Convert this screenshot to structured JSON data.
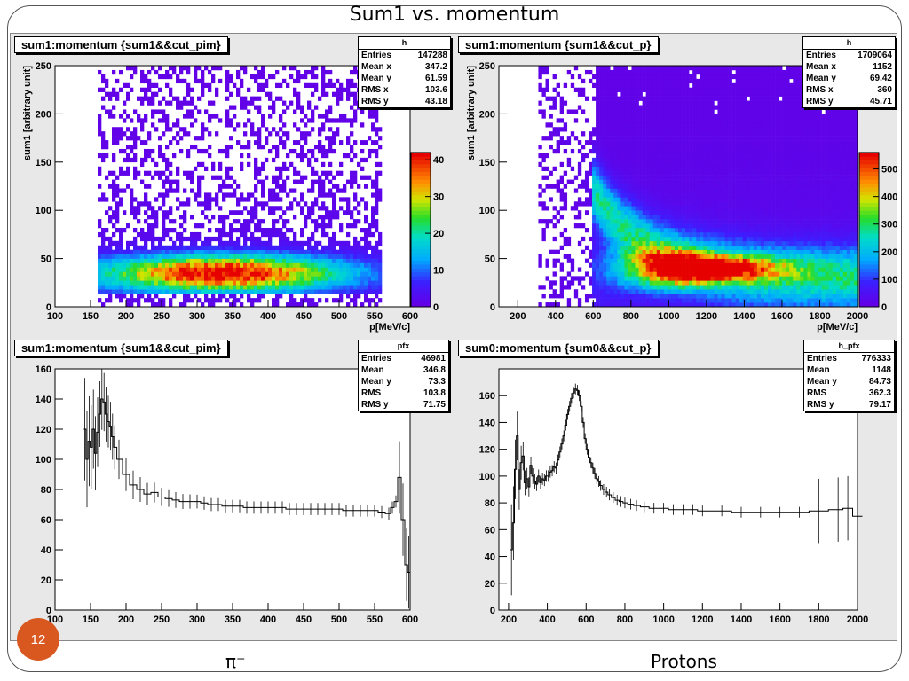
{
  "slide": {
    "title": "Sum1 vs. momentum",
    "number": "12"
  },
  "captions": {
    "left": "π⁻",
    "right": "Protons"
  },
  "colors": {
    "frame": "#555555",
    "pad_bg": "#e8e8e8",
    "plot_bg": "#ffffff",
    "slide_number_bg": "#d9581f",
    "histogram_line": "#000000"
  },
  "panels": [
    {
      "title": "sum1:momentum {sum1&&cut_pim}",
      "stats": {
        "header": "h",
        "rows": [
          [
            "Entries",
            "147288"
          ],
          [
            "Mean x",
            "347.2"
          ],
          [
            "Mean y",
            "61.59"
          ],
          [
            "RMS x",
            "103.6"
          ],
          [
            "RMS y",
            "43.18"
          ]
        ]
      }
    },
    {
      "title": "sum1:momentum {sum1&&cut_p}",
      "stats": {
        "header": "h",
        "rows": [
          [
            "Entries",
            "1709064"
          ],
          [
            "Mean x",
            "1152"
          ],
          [
            "Mean y",
            "69.42"
          ],
          [
            "RMS x",
            "360"
          ],
          [
            "RMS y",
            "45.71"
          ]
        ]
      }
    },
    {
      "title": "sum1:momentum {sum1&&cut_pim}",
      "stats": {
        "header": "pfx",
        "rows": [
          [
            "Entries",
            "46981"
          ],
          [
            "Mean",
            "346.8"
          ],
          [
            "Mean y",
            "73.3"
          ],
          [
            "RMS",
            "103.8"
          ],
          [
            "RMS y",
            "71.75"
          ]
        ]
      }
    },
    {
      "title": "sum0:momentum {sum0&&cut_p}",
      "stats": {
        "header": "h_pfx",
        "rows": [
          [
            "Entries",
            "776333"
          ],
          [
            "Mean",
            "1148"
          ],
          [
            "Mean y",
            "84.73"
          ],
          [
            "RMS",
            "362.3"
          ],
          [
            "RMS y",
            "79.17"
          ]
        ]
      }
    }
  ],
  "chart_data": [
    {
      "type": "heatmap",
      "title": "sum1:momentum {sum1&&cut_pim}",
      "xlabel": "p[MeV/c]",
      "ylabel": "sum1 [arbitrary unit]",
      "xlim": [
        100,
        600
      ],
      "ylim": [
        0,
        250
      ],
      "xticks": [
        100,
        150,
        200,
        250,
        300,
        350,
        400,
        450,
        500,
        550,
        600
      ],
      "yticks": [
        0,
        50,
        100,
        150,
        200,
        250
      ],
      "zlim": [
        0,
        42
      ],
      "zticks": [
        0,
        10,
        20,
        30,
        40
      ],
      "palette": "rainbow",
      "density": {
        "x_range": [
          160,
          560
        ],
        "core_x": [
          250,
          420
        ],
        "core_y": 35,
        "peak_count": 40
      }
    },
    {
      "type": "heatmap",
      "title": "sum1:momentum {sum1&&cut_p}",
      "xlabel": "p[MeV/c]",
      "ylabel": "sum1 [arbitrary unit]",
      "xlim": [
        100,
        2000
      ],
      "ylim": [
        0,
        250
      ],
      "xticks": [
        200,
        400,
        600,
        800,
        1000,
        1200,
        1400,
        1600,
        1800,
        2000
      ],
      "yticks": [
        0,
        50,
        100,
        150,
        200,
        250
      ],
      "zlim": [
        0,
        560
      ],
      "zticks": [
        0,
        100,
        200,
        300,
        400,
        500
      ],
      "palette": "rainbow",
      "density": {
        "x_range": [
          300,
          2000
        ],
        "core_x": [
          900,
          1300
        ],
        "core_y": 40,
        "peak_count": 520
      }
    },
    {
      "type": "line",
      "title": "sum1:momentum {sum1&&cut_pim}",
      "xlim": [
        100,
        600
      ],
      "ylim": [
        0,
        160
      ],
      "xticks": [
        100,
        150,
        200,
        250,
        300,
        350,
        400,
        450,
        500,
        550,
        600
      ],
      "yticks": [
        0,
        20,
        40,
        60,
        80,
        100,
        120,
        140,
        160
      ],
      "series": [
        {
          "x": [
            142,
            145,
            148,
            151,
            154,
            157,
            160,
            163,
            166,
            169,
            172,
            175,
            178,
            181,
            184,
            190,
            200,
            210,
            220,
            230,
            240,
            250,
            260,
            270,
            280,
            290,
            300,
            310,
            320,
            330,
            340,
            350,
            360,
            370,
            380,
            390,
            400,
            410,
            420,
            430,
            440,
            450,
            460,
            470,
            480,
            490,
            500,
            510,
            520,
            530,
            540,
            550,
            560,
            570,
            575,
            580,
            585,
            590,
            595,
            598
          ],
          "y": [
            120,
            100,
            112,
            108,
            120,
            104,
            118,
            130,
            140,
            138,
            130,
            125,
            122,
            115,
            108,
            100,
            90,
            83,
            80,
            77,
            78,
            75,
            74,
            73,
            72,
            72,
            72,
            71,
            70,
            70,
            69,
            69,
            69,
            68,
            68,
            68,
            68,
            68,
            68,
            67,
            67,
            67,
            67,
            67,
            67,
            67,
            67,
            66,
            66,
            66,
            66,
            66,
            65,
            64,
            68,
            72,
            88,
            60,
            30,
            25
          ]
        }
      ]
    },
    {
      "type": "line",
      "title": "sum0:momentum {sum0&&cut_p}",
      "xlim": [
        150,
        2000
      ],
      "ylim": [
        0,
        180
      ],
      "xticks": [
        200,
        400,
        600,
        800,
        1000,
        1200,
        1400,
        1600,
        1800,
        2000
      ],
      "yticks": [
        0,
        20,
        40,
        60,
        80,
        100,
        120,
        140,
        160
      ],
      "series": [
        {
          "x": [
            215,
            225,
            235,
            245,
            255,
            265,
            275,
            285,
            295,
            305,
            315,
            325,
            335,
            345,
            355,
            365,
            375,
            385,
            395,
            405,
            415,
            425,
            435,
            445,
            455,
            465,
            475,
            485,
            495,
            505,
            515,
            525,
            535,
            545,
            555,
            565,
            575,
            585,
            595,
            605,
            615,
            625,
            635,
            645,
            655,
            665,
            675,
            690,
            705,
            720,
            740,
            760,
            780,
            800,
            830,
            860,
            900,
            950,
            1000,
            1050,
            1100,
            1150,
            1200,
            1300,
            1400,
            1500,
            1600,
            1700,
            1800,
            1900,
            1950,
            2000
          ],
          "y": [
            45,
            65,
            105,
            130,
            90,
            110,
            115,
            95,
            98,
            92,
            108,
            100,
            96,
            94,
            100,
            95,
            98,
            97,
            100,
            100,
            103,
            104,
            107,
            106,
            112,
            118,
            124,
            130,
            138,
            146,
            152,
            158,
            162,
            165,
            164,
            160,
            152,
            140,
            128,
            120,
            114,
            110,
            106,
            102,
            98,
            96,
            93,
            90,
            88,
            86,
            84,
            82,
            81,
            80,
            79,
            78,
            77,
            76,
            76,
            75,
            75,
            75,
            74,
            74,
            73,
            73,
            73,
            73,
            74,
            75,
            76,
            70
          ]
        }
      ]
    }
  ]
}
